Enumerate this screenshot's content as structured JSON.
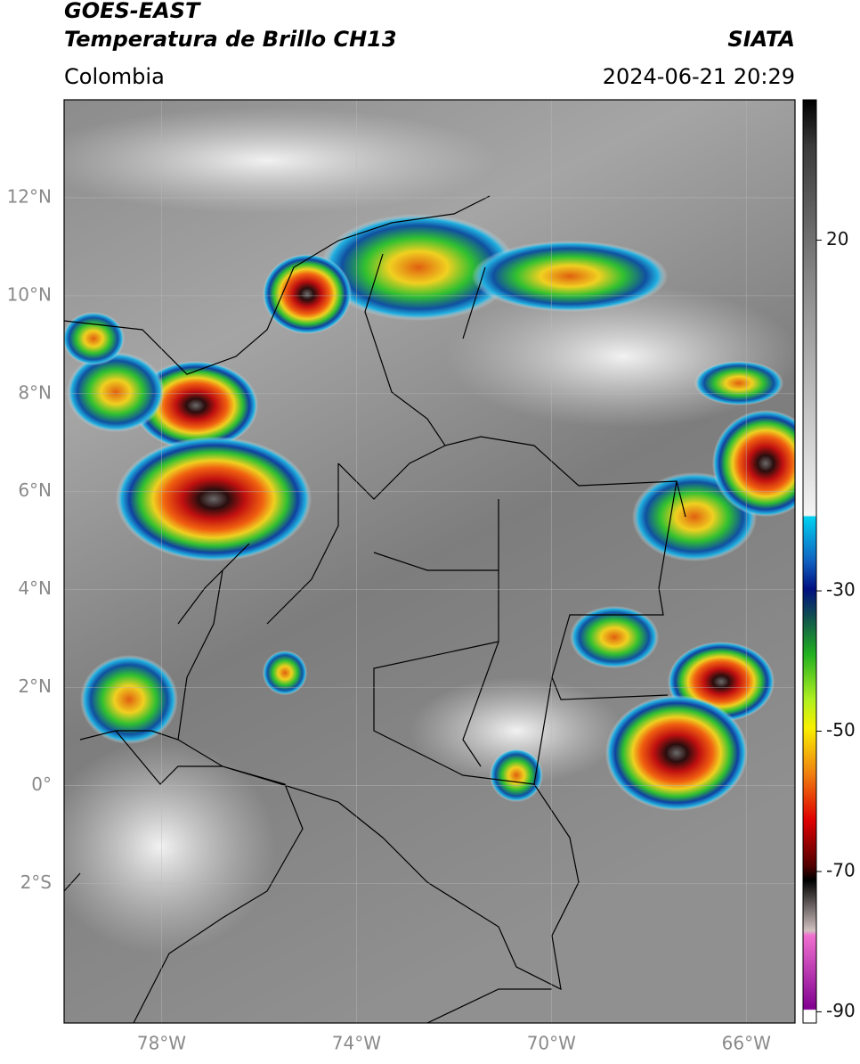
{
  "header": {
    "title_line1": "GOES-EAST",
    "title_line2": "Temperatura de Brillo CH13",
    "agency": "SIATA",
    "region": "Colombia",
    "datetime": "2024-06-21 20:29"
  },
  "map": {
    "xlim": [
      -80,
      -65
    ],
    "ylim": [
      -4.85,
      14
    ],
    "xticks": [
      {
        "value": -78,
        "label": "78°W"
      },
      {
        "value": -74,
        "label": "74°W"
      },
      {
        "value": -70,
        "label": "70°W"
      },
      {
        "value": -66,
        "label": "66°W"
      }
    ],
    "yticks": [
      {
        "value": 12,
        "label": "12°N"
      },
      {
        "value": 10,
        "label": "10°N"
      },
      {
        "value": 8,
        "label": "8°N"
      },
      {
        "value": 6,
        "label": "6°N"
      },
      {
        "value": 4,
        "label": "4°N"
      },
      {
        "value": 2,
        "label": "2°N"
      },
      {
        "value": 0,
        "label": "0°"
      },
      {
        "value": -2,
        "label": "2°S"
      }
    ],
    "grid": true
  },
  "colorbar": {
    "lim": [
      -91.6,
      40
    ],
    "ticks": [
      20,
      -30,
      -50,
      -70,
      -90
    ]
  }
}
